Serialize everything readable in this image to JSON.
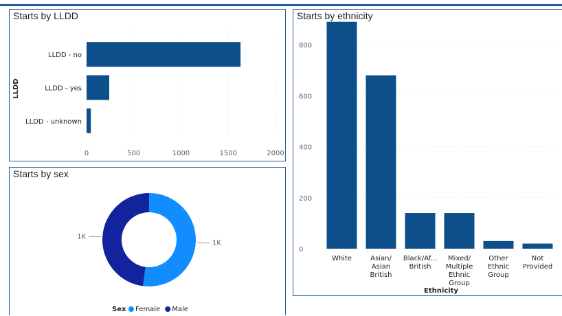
{
  "colors": {
    "bar": "#0d4f8b",
    "female": "#118dff",
    "male": "#12239e",
    "border": "#1f5c99"
  },
  "chart_data": [
    {
      "id": "lldd",
      "type": "bar",
      "orientation": "horizontal",
      "title": "Starts by LLDD",
      "ylabel": "LLDD",
      "xlabel": "",
      "categories": [
        "LLDD - no",
        "LLDD - yes",
        "LLDD - unknown"
      ],
      "values": [
        1630,
        240,
        45
      ],
      "xlim": [
        0,
        2000
      ],
      "ticks": [
        0,
        500,
        1000,
        1500,
        2000
      ],
      "grid": true
    },
    {
      "id": "sex",
      "type": "pie",
      "variant": "donut",
      "title": "Starts by sex",
      "legend_title": "Sex",
      "legend_position": "bottom",
      "categories": [
        "Female",
        "Male"
      ],
      "values": [
        1000,
        920
      ],
      "data_labels": [
        "1K",
        "1K"
      ]
    },
    {
      "id": "ethnicity",
      "type": "bar",
      "orientation": "vertical",
      "title": "Starts by ethnicity",
      "xlabel": "Ethnicity",
      "ylabel": "",
      "categories": [
        [
          "White"
        ],
        [
          "Asian/",
          "Asian",
          "British"
        ],
        [
          "Black/Af...",
          "British"
        ],
        [
          "Mixed/",
          "Multiple",
          "Ethnic",
          "Group"
        ],
        [
          "Other",
          "Ethnic",
          "Group"
        ],
        [
          "Not",
          "Provided"
        ]
      ],
      "values": [
        890,
        680,
        140,
        140,
        30,
        20
      ],
      "ylim": [
        0,
        900
      ],
      "ticks": [
        0,
        200,
        400,
        600,
        800
      ],
      "grid": true
    }
  ]
}
